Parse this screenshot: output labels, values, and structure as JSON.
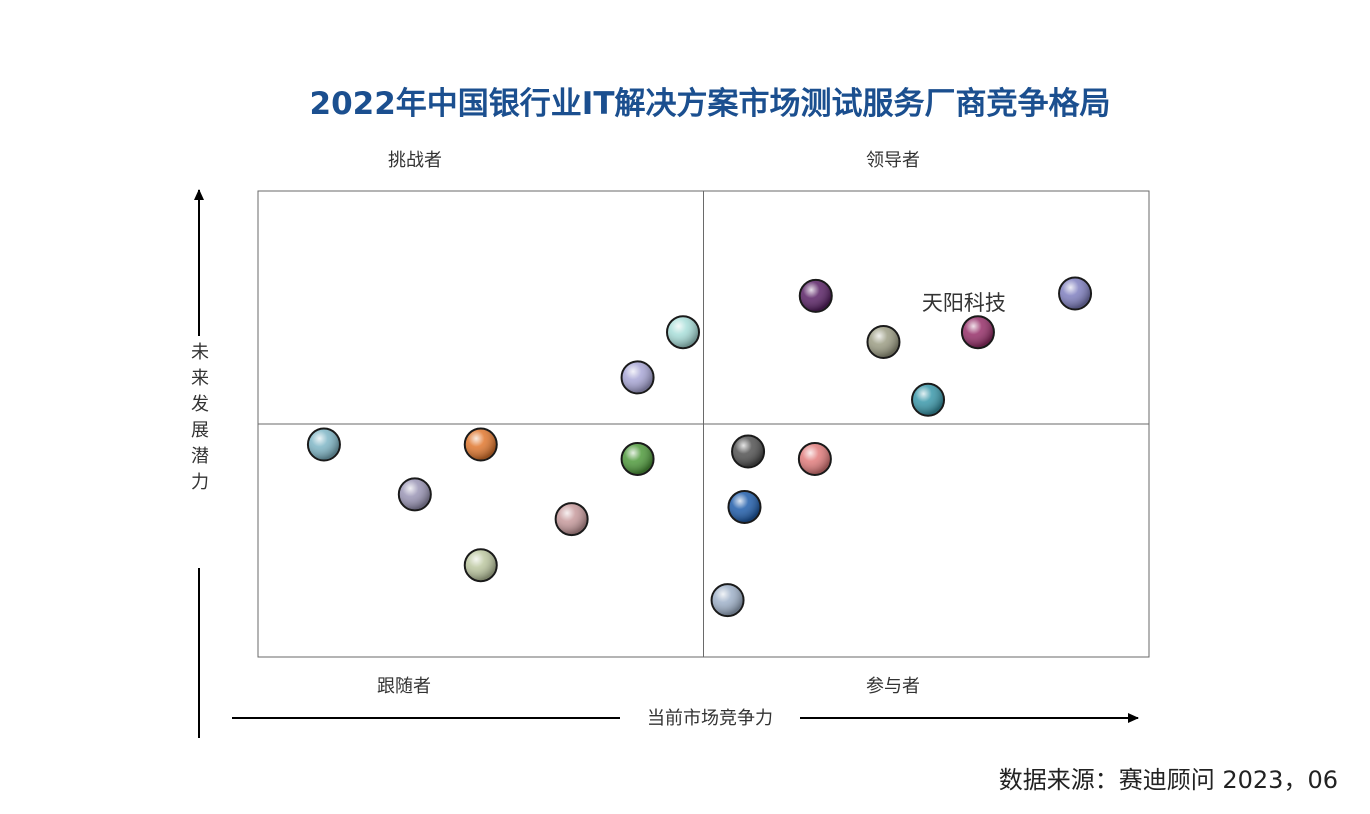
{
  "chart_data": {
    "type": "scatter",
    "title": "2022年中国银行业IT解决方案市场测试服务厂商竞争格局",
    "xlabel": "当前市场竞争力",
    "ylabel": "未来发展潜力",
    "xlim": [
      0,
      100
    ],
    "ylim": [
      0,
      100
    ],
    "quadrants": {
      "top_left": "挑战者",
      "top_right": "领导者",
      "bottom_left": "跟随者",
      "bottom_right": "参与者"
    },
    "grid": false,
    "points": [
      {
        "x": 7.4,
        "y": 45.6,
        "color": "#7fb6c6",
        "label": ""
      },
      {
        "x": 17.6,
        "y": 34.9,
        "color": "#9a95b5",
        "label": ""
      },
      {
        "x": 25.0,
        "y": 45.6,
        "color": "#e0772e",
        "label": ""
      },
      {
        "x": 25.0,
        "y": 19.7,
        "color": "#bcc7a0",
        "label": ""
      },
      {
        "x": 35.2,
        "y": 29.6,
        "color": "#c79a9c",
        "label": ""
      },
      {
        "x": 42.6,
        "y": 42.5,
        "color": "#4f9a3c",
        "label": ""
      },
      {
        "x": 42.6,
        "y": 60.0,
        "color": "#a9a7d6",
        "label": ""
      },
      {
        "x": 47.7,
        "y": 69.7,
        "color": "#a8ded9",
        "label": ""
      },
      {
        "x": 52.7,
        "y": 12.2,
        "color": "#9fb1c9",
        "label": ""
      },
      {
        "x": 54.6,
        "y": 32.2,
        "color": "#1f5dab",
        "label": ""
      },
      {
        "x": 55.0,
        "y": 44.1,
        "color": "#525252",
        "label": ""
      },
      {
        "x": 62.5,
        "y": 42.5,
        "color": "#e17c7c",
        "label": ""
      },
      {
        "x": 62.6,
        "y": 77.5,
        "color": "#5a2266",
        "label": ""
      },
      {
        "x": 70.2,
        "y": 67.6,
        "color": "#9c9d84",
        "label": ""
      },
      {
        "x": 75.2,
        "y": 55.2,
        "color": "#3a98aa",
        "label": ""
      },
      {
        "x": 80.8,
        "y": 69.7,
        "color": "#962f69",
        "label": "天阳科技"
      },
      {
        "x": 91.7,
        "y": 78.0,
        "color": "#7f7fbf",
        "label": ""
      }
    ]
  },
  "source": "数据来源：赛迪顾问 2023，06"
}
